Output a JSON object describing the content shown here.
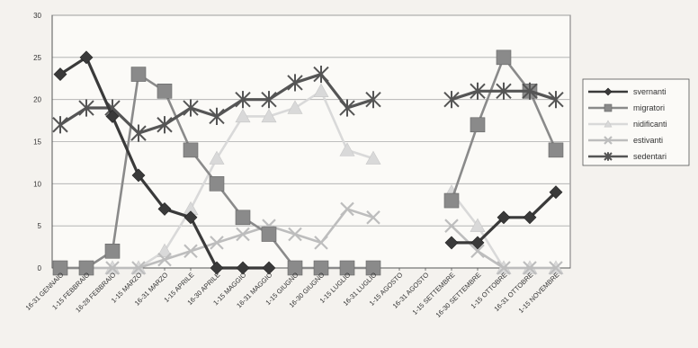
{
  "chart_data": {
    "type": "line",
    "categories": [
      "16-31 GENNAIO",
      "1-15 FEBBRAIO",
      "16-28 FEBBRAIO",
      "1-15 MARZO",
      "16-31 MARZO",
      "1-15 APRILE",
      "16-30 APRILE",
      "1-15 MAGGIO",
      "16-31 MAGGIO",
      "1-15 GIUGNO",
      "16-30 GIUGNO",
      "1-15 LUGLIO",
      "16-31 LUGLIO",
      "1-15 AGOSTO",
      "16-31 AGOSTO",
      "1-15 SETTEMBRE",
      "16-30 SETTEMBRE",
      "1-15 OTTOBRE",
      "16-31 OTTOBRE",
      "1-15 NOVEMBRE"
    ],
    "ylim": [
      0,
      30
    ],
    "yticks": [
      "0",
      "5",
      "10",
      "15",
      "20",
      "25",
      "30"
    ],
    "grid": "horizontal",
    "legend_position": "right",
    "series": [
      {
        "name": "svernanti",
        "color": "#3a3a3a",
        "marker": "diamond",
        "values": [
          23,
          25,
          18,
          11,
          7,
          6,
          0,
          0,
          0,
          null,
          null,
          null,
          null,
          null,
          null,
          3,
          3,
          6,
          6,
          9
        ]
      },
      {
        "name": "migratori",
        "color": "#8a8a8a",
        "marker": "square",
        "values": [
          0,
          0,
          2,
          23,
          21,
          14,
          10,
          6,
          4,
          0,
          0,
          0,
          0,
          null,
          null,
          8,
          17,
          25,
          21,
          14
        ]
      },
      {
        "name": "nidificanti",
        "color": "#d9d9d9",
        "marker": "triangle",
        "values": [
          0,
          0,
          0,
          0,
          2,
          7,
          13,
          18,
          18,
          19,
          21,
          14,
          13,
          null,
          null,
          9,
          5,
          0,
          0,
          0
        ]
      },
      {
        "name": "estivanti",
        "color": "#bdbdbd",
        "marker": "x",
        "values": [
          0,
          0,
          0,
          0,
          1,
          2,
          3,
          4,
          5,
          4,
          3,
          7,
          6,
          null,
          null,
          5,
          2,
          0,
          0,
          0
        ]
      },
      {
        "name": "sedentari",
        "color": "#555555",
        "marker": "star",
        "values": [
          17,
          19,
          19,
          16,
          17,
          19,
          18,
          20,
          20,
          22,
          23,
          19,
          20,
          null,
          null,
          20,
          21,
          21,
          21,
          20
        ]
      }
    ]
  }
}
